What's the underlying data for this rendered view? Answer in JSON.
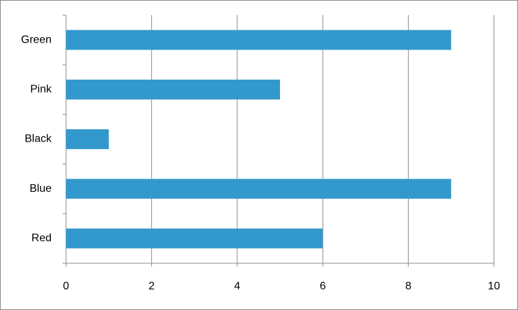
{
  "chart_data": {
    "type": "bar",
    "orientation": "horizontal",
    "categories": [
      "Red",
      "Blue",
      "Black",
      "Pink",
      "Green"
    ],
    "values": [
      6,
      9,
      1,
      5,
      9
    ],
    "color": "#3399cc",
    "xlim": [
      0,
      10
    ],
    "xticks": [
      0,
      2,
      4,
      6,
      8,
      10
    ],
    "grid": true
  }
}
